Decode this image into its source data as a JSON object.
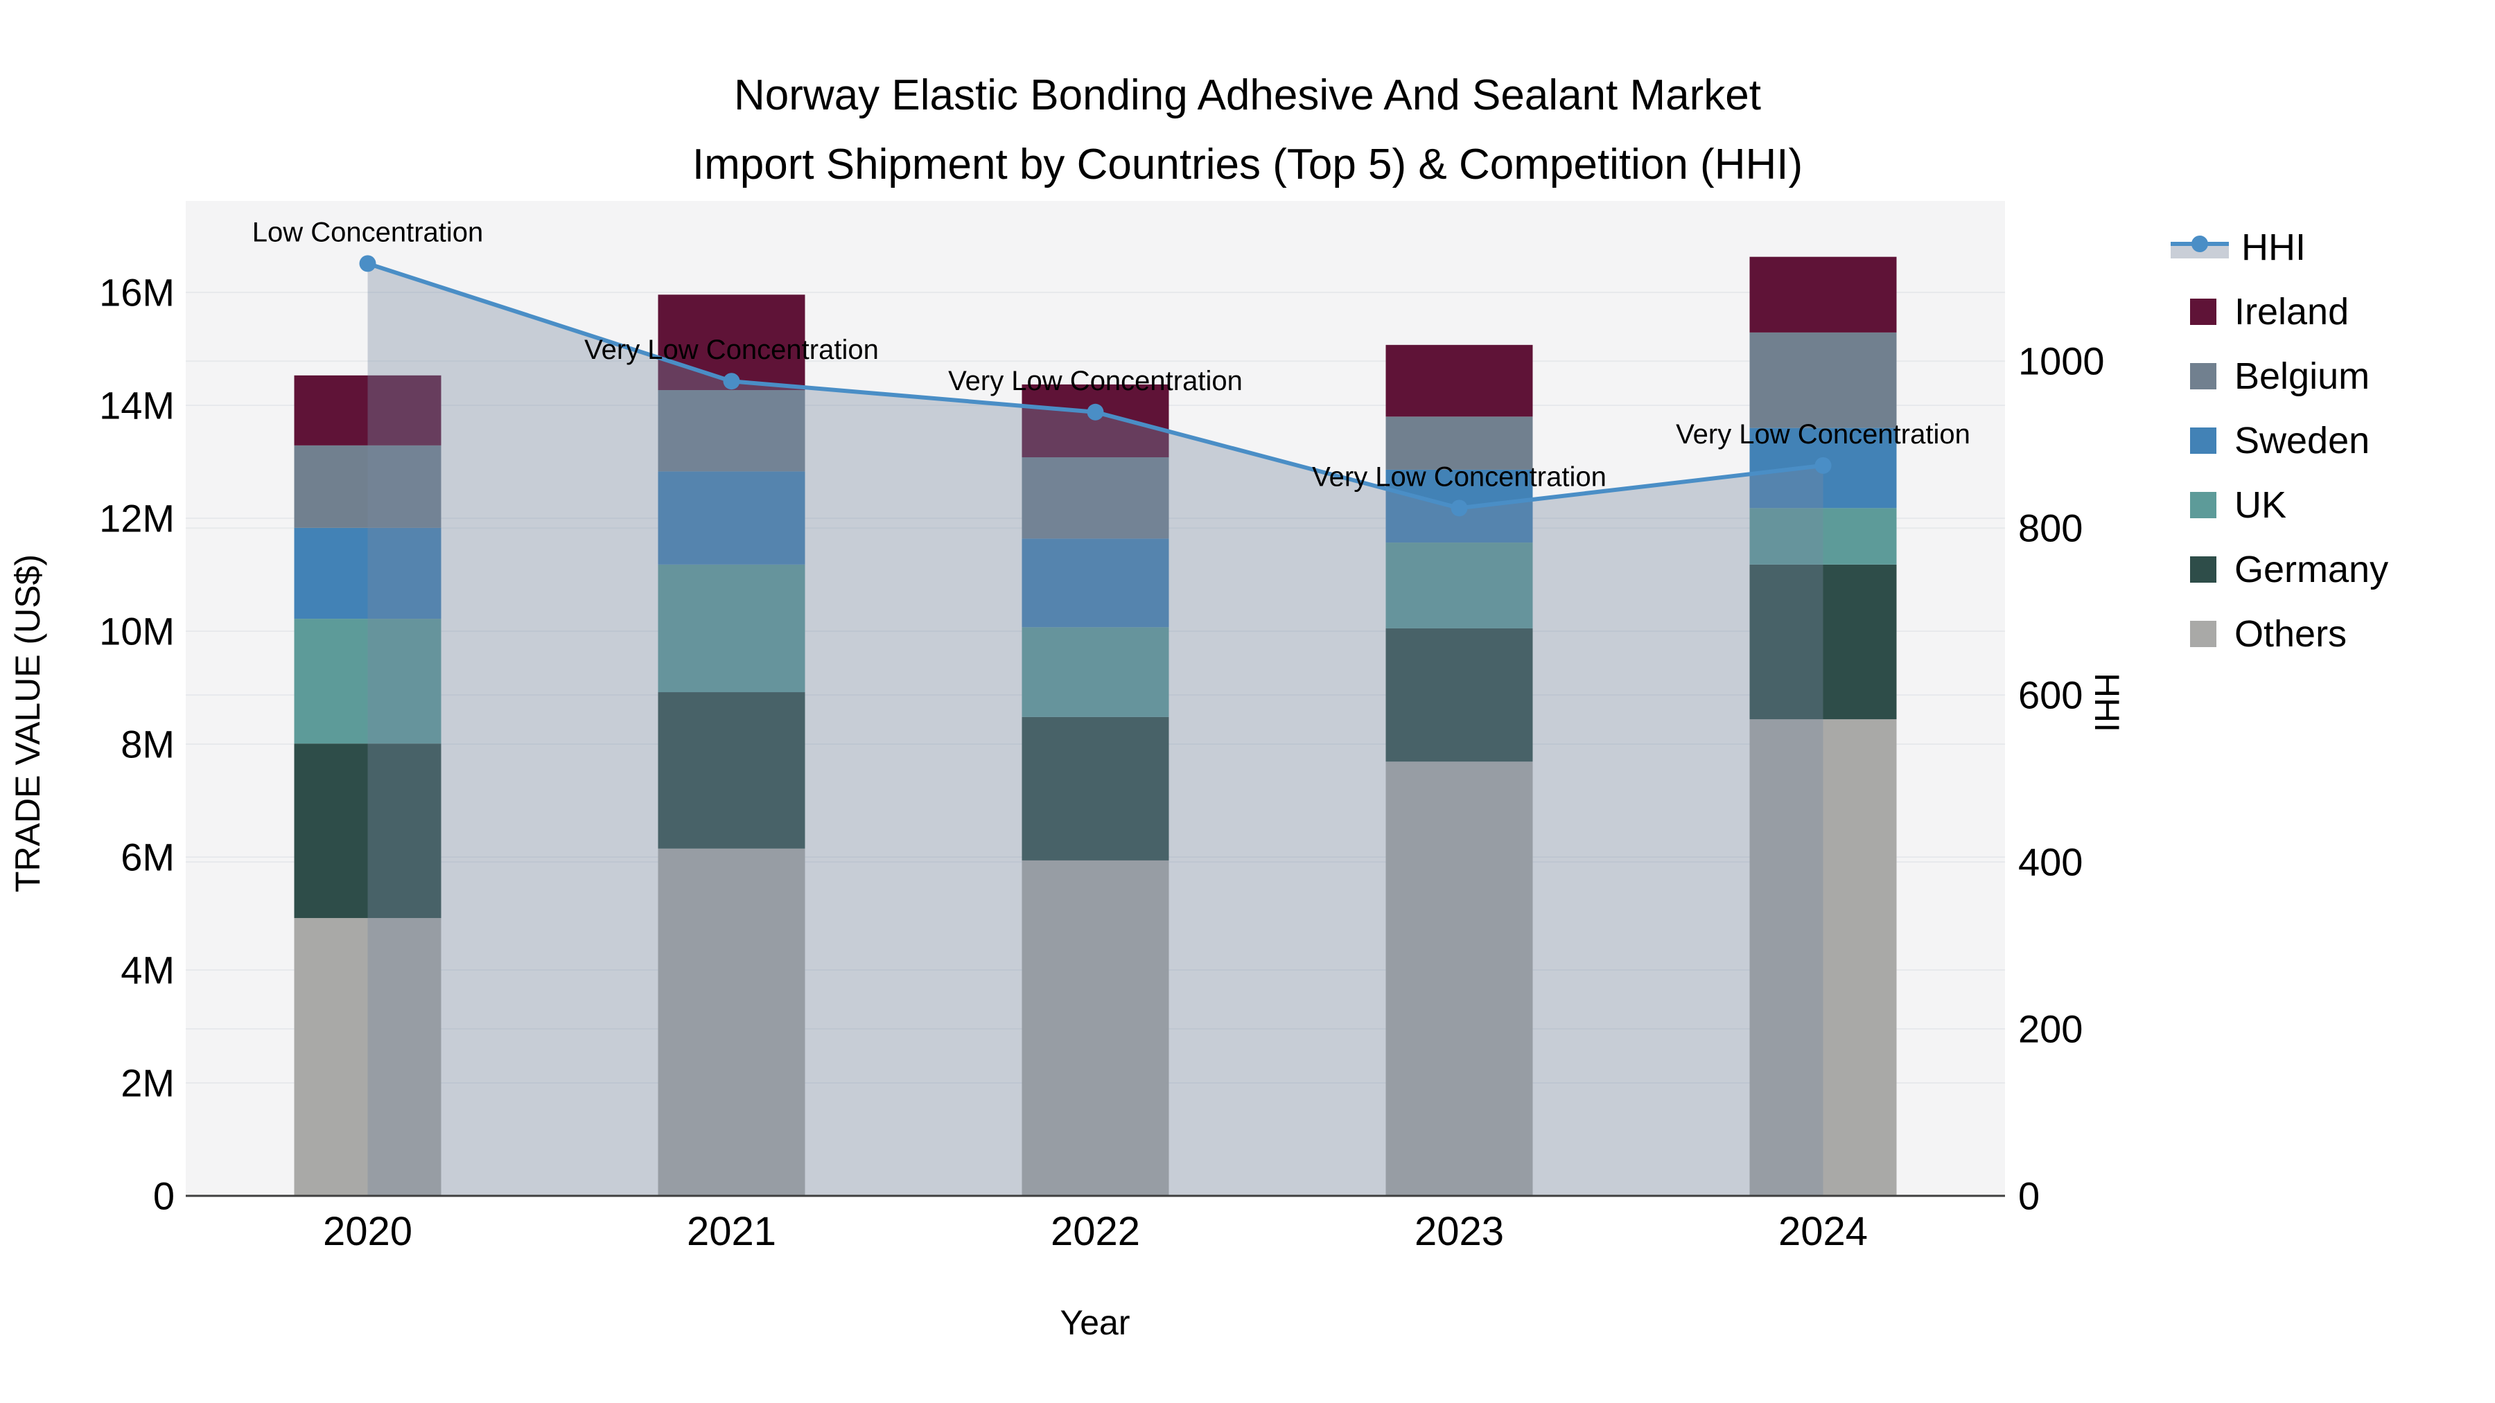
{
  "title": {
    "line1": "Norway Elastic Bonding Adhesive And Sealant Market",
    "line2": "Import Shipment by Countries (Top 5) & Competition (HHI)"
  },
  "axes": {
    "x_label": "Year",
    "y_left_label": "TRADE VALUE (US$)",
    "y_right_label": "HHI",
    "y_left_ticks": [
      {
        "label": "0",
        "value": 0
      },
      {
        "label": "2M",
        "value": 2
      },
      {
        "label": "4M",
        "value": 4
      },
      {
        "label": "6M",
        "value": 6
      },
      {
        "label": "8M",
        "value": 8
      },
      {
        "label": "10M",
        "value": 10
      },
      {
        "label": "12M",
        "value": 12
      },
      {
        "label": "14M",
        "value": 14
      },
      {
        "label": "16M",
        "value": 16
      }
    ],
    "y_right_ticks": [
      {
        "label": "0",
        "value": 0
      },
      {
        "label": "200",
        "value": 200
      },
      {
        "label": "400",
        "value": 400
      },
      {
        "label": "600",
        "value": 600
      },
      {
        "label": "800",
        "value": 800
      },
      {
        "label": "1000",
        "value": 1000
      }
    ]
  },
  "chart_data": {
    "type": "bar",
    "stacked": true,
    "subtype": "stacked bars with overlaid line on secondary axis",
    "categories": [
      "2020",
      "2021",
      "2022",
      "2023",
      "2024"
    ],
    "value_unit": "US$ millions",
    "series": [
      {
        "name": "Others",
        "color": "#a9a9a7",
        "values": [
          4.92,
          6.15,
          5.94,
          7.69,
          8.44
        ]
      },
      {
        "name": "Germany",
        "color": "#2e4d49",
        "values": [
          3.09,
          2.77,
          2.54,
          2.36,
          2.74
        ]
      },
      {
        "name": "UK",
        "color": "#5d9b99",
        "values": [
          2.21,
          2.26,
          1.59,
          1.52,
          1.0
        ]
      },
      {
        "name": "Sweden",
        "color": "#4282b6",
        "values": [
          1.61,
          1.65,
          1.57,
          1.29,
          1.42
        ]
      },
      {
        "name": "Belgium",
        "color": "#71808f",
        "values": [
          1.46,
          1.44,
          1.44,
          0.94,
          1.69
        ]
      },
      {
        "name": "Ireland",
        "color": "#5f1337",
        "values": [
          1.24,
          1.69,
          1.29,
          1.27,
          1.34
        ]
      }
    ],
    "bar_totals_millions": [
      14.53,
      15.96,
      14.37,
      15.07,
      16.63
    ],
    "line_series": {
      "name": "HHI",
      "axis": "right",
      "color": "#4a8ec6",
      "area_fill": "rgba(120,135,160,0.36)",
      "values": [
        1117,
        976,
        939,
        824,
        875
      ]
    },
    "annotations": [
      "Low Concentration",
      "Very Low Concentration",
      "Very Low Concentration",
      "Very Low Concentration",
      "Very Low Concentration"
    ],
    "ylim_left_millions": [
      0,
      17.62
    ],
    "ylim_right": [
      0,
      1192
    ],
    "grid": true,
    "legend_position": "right"
  },
  "legend": {
    "items": [
      {
        "label": "HHI",
        "marker": "line",
        "color": "#4a8ec6"
      },
      {
        "label": "Ireland",
        "marker": "square",
        "color": "#5f1337"
      },
      {
        "label": "Belgium",
        "marker": "square",
        "color": "#71808f"
      },
      {
        "label": "Sweden",
        "marker": "square",
        "color": "#4282b6"
      },
      {
        "label": "UK",
        "marker": "square",
        "color": "#5d9b99"
      },
      {
        "label": "Germany",
        "marker": "square",
        "color": "#2e4d49"
      },
      {
        "label": "Others",
        "marker": "square",
        "color": "#a9a9a7"
      }
    ]
  },
  "colors": {
    "page_background": "#ffffff",
    "plot_background": "#f4f4f5",
    "gridline": "#e7e9ec",
    "axis_line": "#3f3f3f",
    "text": "#000000"
  }
}
